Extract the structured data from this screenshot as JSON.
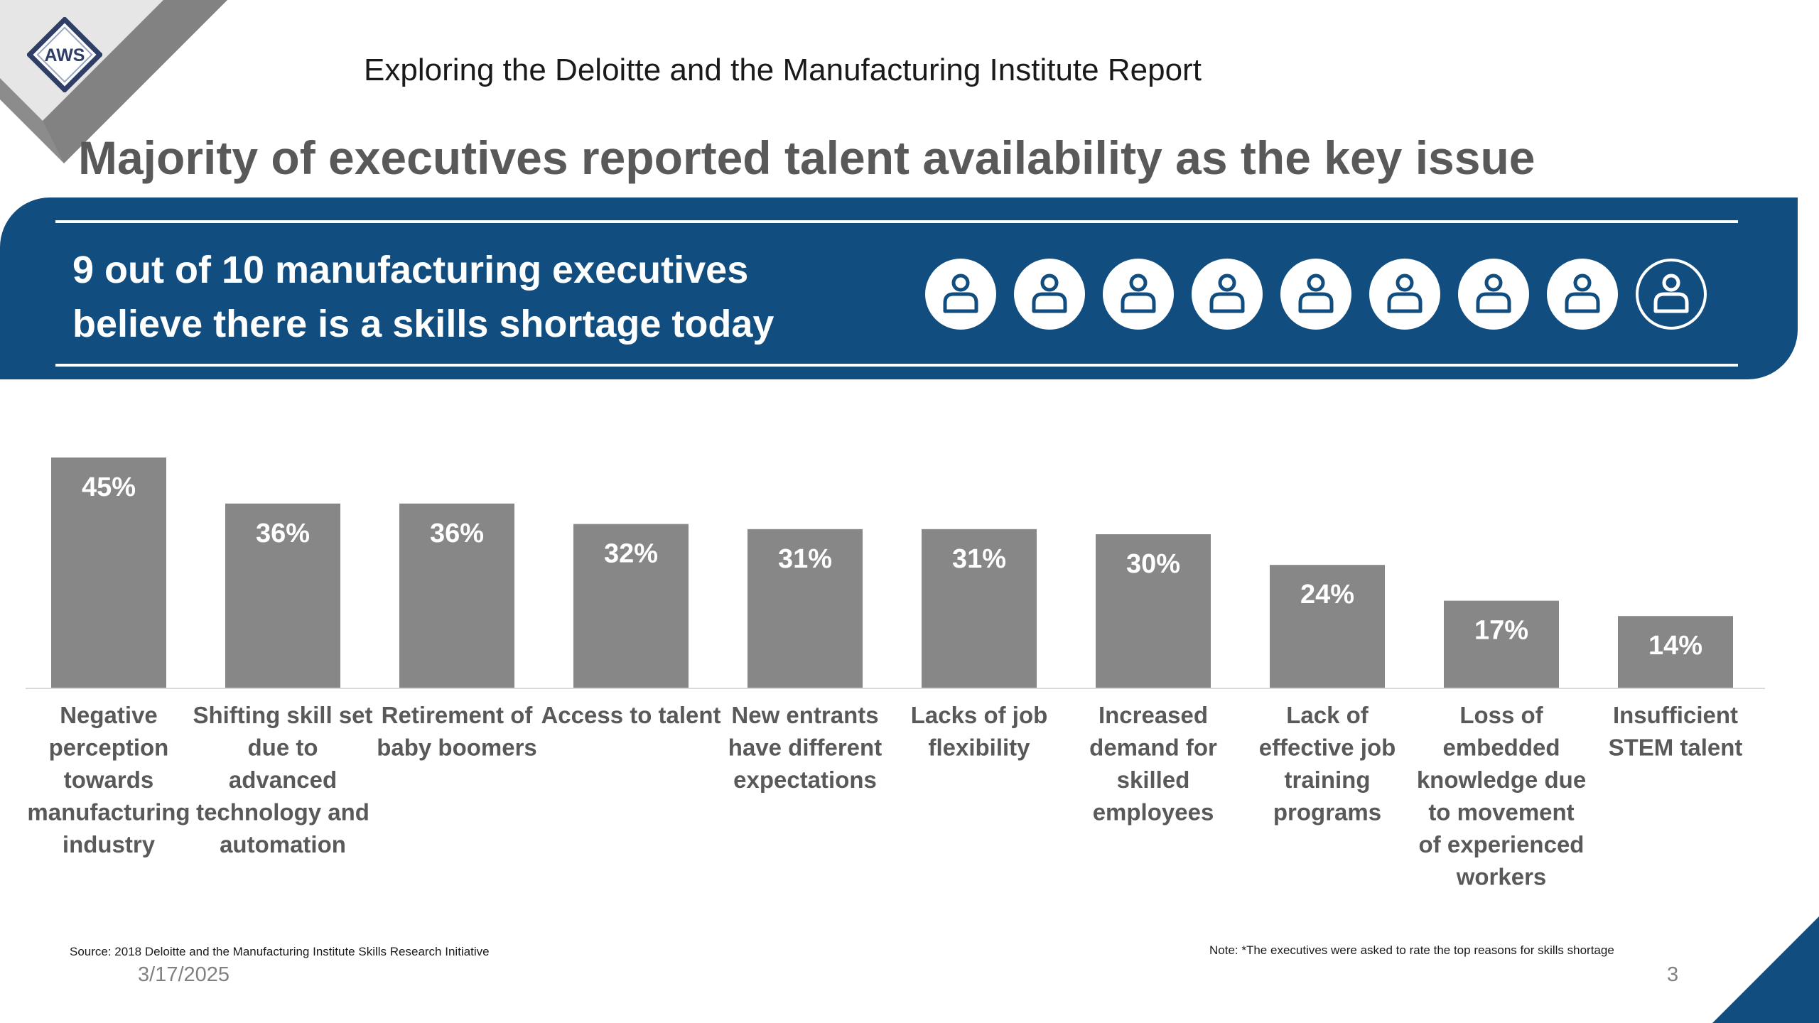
{
  "header": {
    "subtitle": "Exploring the Deloitte and the Manufacturing Institute Report",
    "title": "Majority of executives reported talent availability as the key issue",
    "logo_text": "AWS"
  },
  "banner": {
    "line1": "9 out of 10 manufacturing executives",
    "line2": "believe there is a skills shortage today",
    "people_icon": "person-icon",
    "people_total": 10,
    "people_shown": 9,
    "people_filled": 8,
    "people_outlined": 1
  },
  "colors": {
    "banner": "#114d7e",
    "bar": "#878787",
    "title": "#595959",
    "label": "#595959",
    "bar_value_text": "#ffffff"
  },
  "chart_data": {
    "type": "bar",
    "title": "",
    "xlabel": "",
    "ylabel": "",
    "ylim": [
      0,
      50
    ],
    "grid": false,
    "legend": "none",
    "categories": [
      "Negative perception towards manufacturing industry",
      "Shifting skill set due to advanced technology and automation",
      "Retirement of baby boomers",
      "Access to talent",
      "New entrants have different expectations",
      "Lacks of job flexibility",
      "Increased demand for skilled employees",
      "Lack of effective job training programs",
      "Loss of embedded knowledge due to movement of experienced workers",
      "Insufficient STEM talent"
    ],
    "category_lines": [
      [
        "Negative",
        "perception",
        "towards",
        "manufacturing",
        "industry"
      ],
      [
        "Shifting skill set",
        "due to",
        "advanced",
        "technology and",
        "automation"
      ],
      [
        "Retirement of",
        "baby boomers"
      ],
      [
        "Access to talent"
      ],
      [
        "New entrants",
        "have different",
        "expectations"
      ],
      [
        "Lacks of job",
        "flexibility"
      ],
      [
        "Increased",
        "demand for",
        "skilled",
        "employees"
      ],
      [
        "Lack of",
        "effective job",
        "training",
        "programs"
      ],
      [
        "Loss of",
        "embedded",
        "knowledge due",
        "to movement",
        "of experienced",
        "workers"
      ],
      [
        "Insufficient",
        "STEM talent"
      ]
    ],
    "values": [
      45,
      36,
      36,
      32,
      31,
      31,
      30,
      24,
      17,
      14
    ],
    "value_labels": [
      "45%",
      "36%",
      "36%",
      "32%",
      "31%",
      "31%",
      "30%",
      "24%",
      "17%",
      "14%"
    ]
  },
  "footer": {
    "source": "Source: 2018 Deloitte and the Manufacturing Institute Skills Research Initiative",
    "note": "Note: *The executives were asked to rate the top reasons for skills shortage",
    "date": "3/17/2025",
    "page": "3"
  }
}
